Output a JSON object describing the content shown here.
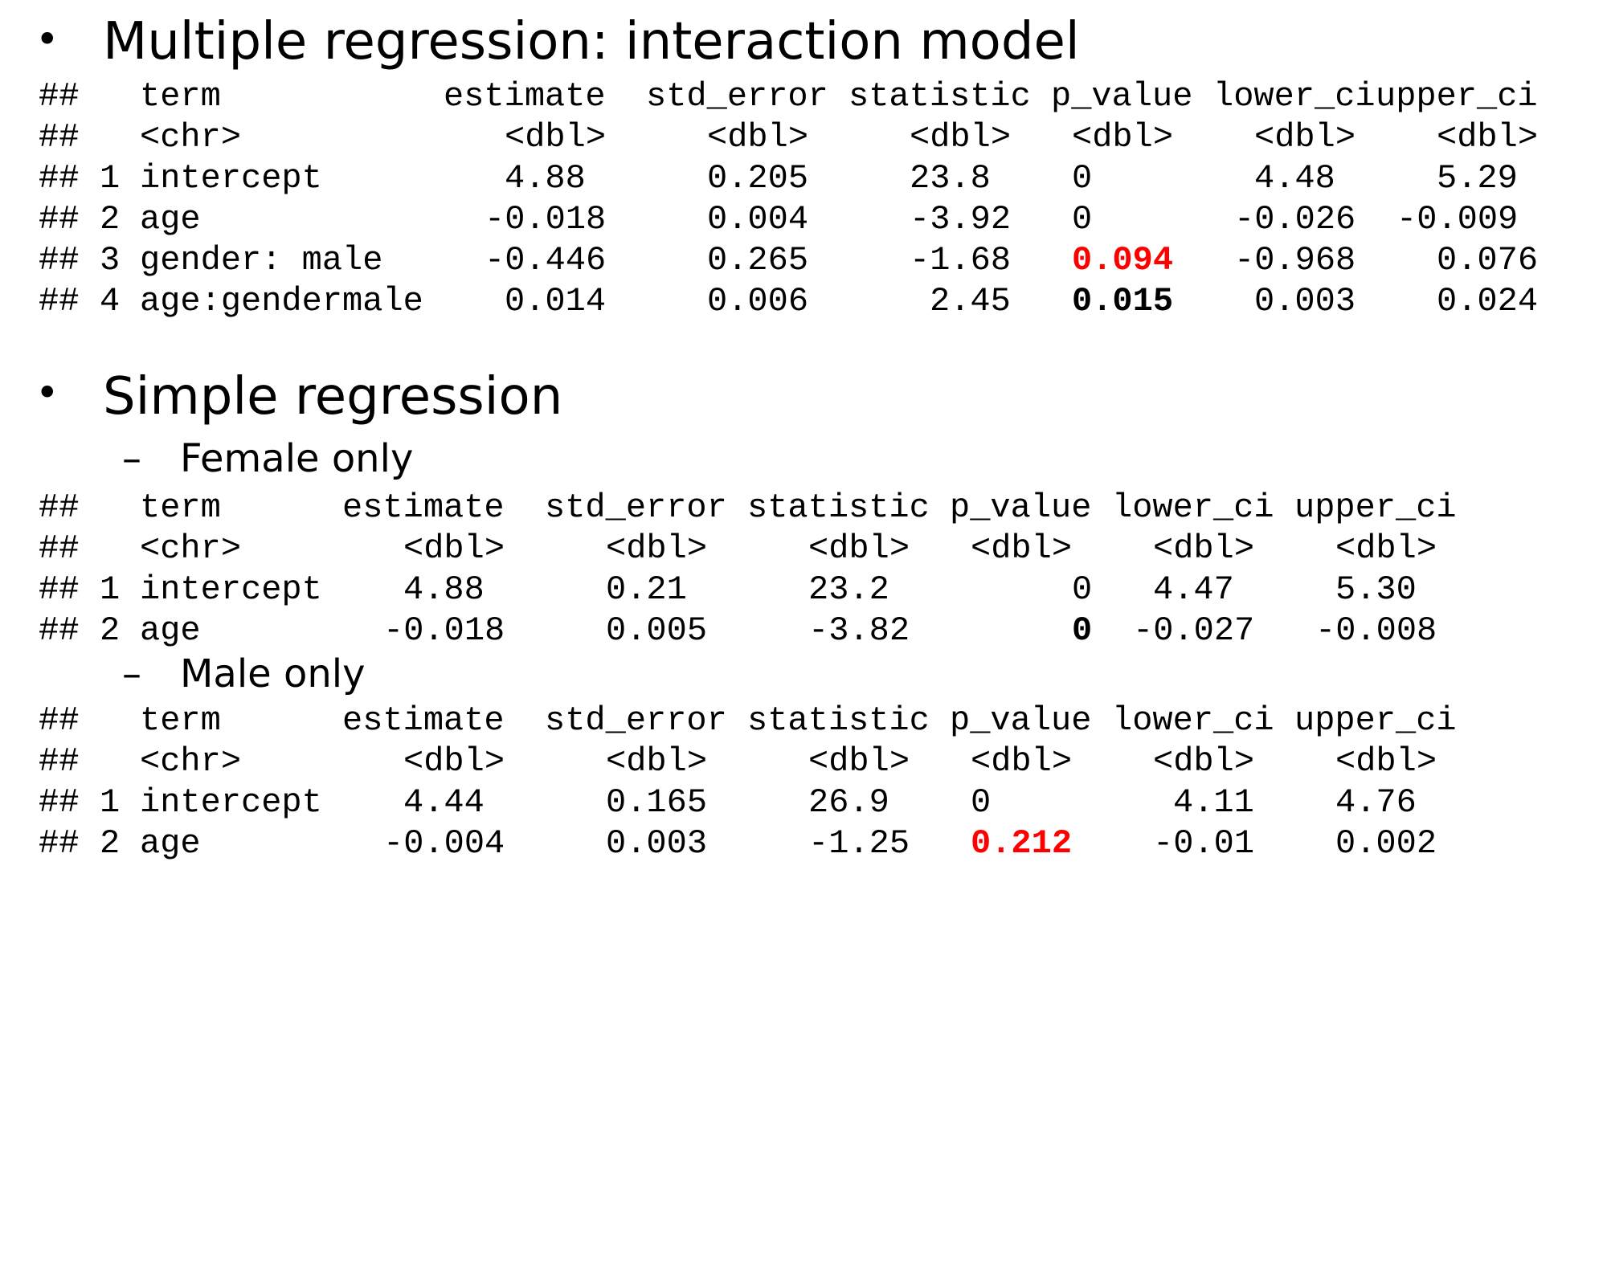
{
  "section1": {
    "bullet": "•",
    "heading": "Multiple regression: interaction model",
    "header_row": [
      "##",
      "term",
      "estimate",
      "std_error",
      "statistic",
      "p_value",
      "lower_ci",
      "upper_ci"
    ],
    "type_row": [
      "##",
      "<chr>",
      "<dbl>",
      "<dbl>",
      "<dbl>",
      "<dbl>",
      "<dbl>",
      "<dbl>"
    ],
    "rows": [
      {
        "hash": "##",
        "idx": "1",
        "term": "intercept",
        "estimate": "4.88",
        "std_error": "0.205",
        "statistic": "23.8",
        "p_value": "0",
        "lower_ci": "4.48",
        "upper_ci": "5.29"
      },
      {
        "hash": "##",
        "idx": "2",
        "term": "age",
        "estimate": "-0.018",
        "std_error": "0.004",
        "statistic": "-3.92",
        "p_value": "0",
        "lower_ci": "-0.026",
        "upper_ci": "-0.009"
      },
      {
        "hash": "##",
        "idx": "3",
        "term": "gender: male",
        "estimate": "-0.446",
        "std_error": "0.265",
        "statistic": "-1.68",
        "p_value": "0.094",
        "lower_ci": "-0.968",
        "upper_ci": "0.076"
      },
      {
        "hash": "##",
        "idx": "4",
        "term": "age:gendermale",
        "estimate": "0.014",
        "std_error": "0.006",
        "statistic": "2.45",
        "p_value": "0.015",
        "lower_ci": "0.003",
        "upper_ci": "0.024"
      }
    ]
  },
  "section2": {
    "bullet": "•",
    "heading": "Simple regression",
    "female": {
      "dash": "–",
      "label": "Female only",
      "header_row": [
        "##",
        "term",
        "estimate",
        "std_error",
        "statistic",
        "p_value",
        "lower_ci",
        "upper_ci"
      ],
      "type_row": [
        "##",
        "<chr>",
        "<dbl>",
        "<dbl>",
        "<dbl>",
        "<dbl>",
        "<dbl>",
        "<dbl>"
      ],
      "rows": [
        {
          "hash": "##",
          "idx": "1",
          "term": "intercept",
          "estimate": "4.88",
          "std_error": "0.21",
          "statistic": "23.2",
          "p_value": "0",
          "lower_ci": "4.47",
          "upper_ci": "5.30"
        },
        {
          "hash": "##",
          "idx": "2",
          "term": "age",
          "estimate": "-0.018",
          "std_error": "0.005",
          "statistic": "-3.82",
          "p_value": "0",
          "lower_ci": "-0.027",
          "upper_ci": "-0.008"
        }
      ]
    },
    "male": {
      "dash": "–",
      "label": "Male only",
      "header_row": [
        "##",
        "term",
        "estimate",
        "std_error",
        "statistic",
        "p_value",
        "lower_ci",
        "upper_ci"
      ],
      "type_row": [
        "##",
        "<chr>",
        "<dbl>",
        "<dbl>",
        "<dbl>",
        "<dbl>",
        "<dbl>",
        "<dbl>"
      ],
      "rows": [
        {
          "hash": "##",
          "idx": "1",
          "term": "intercept",
          "estimate": "4.44",
          "std_error": "0.165",
          "statistic": "26.9",
          "p_value": "0",
          "lower_ci": "4.11",
          "upper_ci": "4.76"
        },
        {
          "hash": "##",
          "idx": "2",
          "term": "age",
          "estimate": "-0.004",
          "std_error": "0.003",
          "statistic": "-1.25",
          "p_value": "0.212",
          "lower_ci": "-0.01",
          "upper_ci": "0.002"
        }
      ]
    }
  }
}
